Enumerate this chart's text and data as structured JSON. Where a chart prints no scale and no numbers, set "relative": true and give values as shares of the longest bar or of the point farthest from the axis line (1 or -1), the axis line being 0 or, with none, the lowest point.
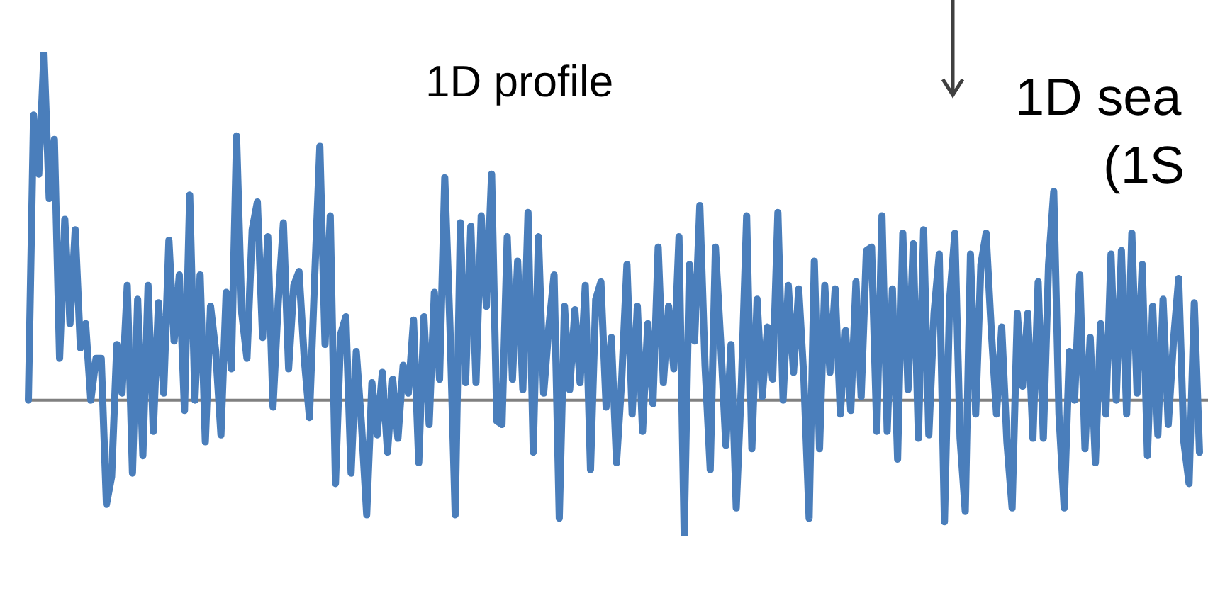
{
  "chart_data": {
    "type": "line",
    "relative": true,
    "color": "#4a7ebb",
    "legend": false,
    "annotations": [
      "1D profile",
      "1D sea",
      "(1S"
    ],
    "categories": [
      null,
      null,
      null,
      null,
      null,
      null,
      null,
      null,
      null,
      null,
      null,
      null,
      null,
      null,
      null,
      null,
      null,
      null,
      null,
      null,
      null,
      null,
      null,
      null,
      null,
      null,
      null,
      null,
      null,
      null,
      null,
      null,
      null,
      null,
      null,
      null,
      null,
      null,
      null,
      null,
      null,
      null,
      null,
      null,
      null,
      null,
      null,
      null,
      null,
      null,
      null,
      null,
      null,
      null,
      null,
      null,
      null,
      null,
      null,
      null,
      null,
      null,
      null,
      null,
      null,
      null,
      null,
      null,
      null,
      null,
      null,
      null,
      null,
      null,
      null,
      null,
      null,
      null,
      null,
      null,
      null,
      null,
      null,
      null,
      null,
      null,
      null,
      null,
      null,
      null,
      null,
      null,
      null,
      null,
      null,
      null,
      null,
      null,
      null,
      null,
      null,
      null,
      null,
      null,
      null,
      null,
      null,
      null,
      null,
      null,
      null,
      null,
      null,
      null,
      null,
      null,
      null,
      null,
      null,
      null,
      null,
      null,
      null,
      null,
      null,
      null,
      null,
      null,
      null,
      null,
      null,
      null,
      null,
      null,
      null,
      null,
      null,
      null,
      null,
      null,
      null,
      null,
      null,
      null,
      null,
      null,
      null,
      null,
      null,
      null,
      null,
      null,
      null,
      null,
      null,
      null,
      null,
      null,
      null,
      null,
      null,
      null,
      null,
      null,
      null,
      null,
      null,
      null,
      null,
      null,
      null,
      null,
      null,
      null,
      null,
      null,
      null,
      null,
      null,
      null,
      null,
      null,
      null,
      null,
      null,
      null,
      null,
      null,
      null,
      null,
      null,
      null,
      null,
      null,
      null,
      null,
      null,
      null,
      null,
      null,
      null,
      null,
      null,
      null,
      null,
      null,
      null,
      null,
      null,
      null,
      null,
      null,
      null,
      null,
      null,
      null,
      null,
      null,
      null,
      null,
      null,
      null,
      null,
      null,
      null,
      null
    ],
    "values": [
      0,
      0.82,
      0.65,
      1.0,
      0.58,
      0.75,
      0.12,
      0.52,
      0.22,
      0.49,
      0.15,
      0.22,
      0,
      0.12,
      0.12,
      -0.3,
      -0.22,
      0.16,
      0.02,
      0.33,
      -0.21,
      0.29,
      -0.16,
      0.33,
      -0.09,
      0.28,
      0.02,
      0.46,
      0.17,
      0.36,
      -0.03,
      0.59,
      0,
      0.36,
      -0.12,
      0.27,
      0.14,
      -0.1,
      0.31,
      0.09,
      0.76,
      0.25,
      0.12,
      0.49,
      0.57,
      0.18,
      0.47,
      -0.02,
      0.28,
      0.51,
      0.09,
      0.33,
      0.37,
      0.12,
      -0.05,
      0.35,
      0.73,
      0.16,
      0.53,
      -0.24,
      0.19,
      0.24,
      -0.21,
      0.14,
      -0.07,
      -0.33,
      0.05,
      -0.1,
      0.08,
      -0.15,
      0.06,
      -0.11,
      0.1,
      0.02,
      0.23,
      -0.18,
      0.24,
      -0.07,
      0.31,
      0.06,
      0.64,
      0.21,
      -0.33,
      0.51,
      0.05,
      0.5,
      0.05,
      0.53,
      0.27,
      0.65,
      -0.06,
      -0.07,
      0.47,
      0.06,
      0.4,
      0.03,
      0.54,
      -0.15,
      0.47,
      0.02,
      0.21,
      0.36,
      -0.34,
      0.27,
      0.03,
      0.26,
      0.05,
      0.33,
      -0.2,
      0.29,
      0.34,
      -0.02,
      0.18,
      -0.18,
      0.06,
      0.39,
      -0.04,
      0.27,
      -0.09,
      0.22,
      -0.01,
      0.44,
      0.05,
      0.27,
      0.09,
      0.47,
      -0.39,
      0.39,
      0.17,
      0.56,
      0.1,
      -0.2,
      0.44,
      0.17,
      -0.13,
      0.16,
      -0.31,
      0.05,
      0.53,
      -0.14,
      0.29,
      0.01,
      0.21,
      0.06,
      0.54,
      0,
      0.33,
      0.08,
      0.32,
      0.06,
      -0.34,
      0.4,
      -0.14,
      0.33,
      0.08,
      0.32,
      -0.04,
      0.2,
      -0.03,
      0.34,
      0.01,
      0.43,
      0.44,
      -0.09,
      0.53,
      -0.09,
      0.32,
      -0.17,
      0.48,
      0.03,
      0.45,
      -0.11,
      0.49,
      -0.1,
      0.25,
      0.42,
      -0.35,
      0.29,
      0.48,
      -0.11,
      -0.32,
      0.42,
      -0.04,
      0.39,
      0.48,
      0.2,
      -0.04,
      0.21,
      -0.12,
      -0.31,
      0.25,
      0.04,
      0.25,
      -0.11,
      0.34,
      -0.11,
      0.39,
      0.6,
      -0.04,
      -0.31,
      0.14,
      0,
      0.36,
      -0.14,
      0.18,
      -0.18,
      0.22,
      -0.04,
      0.42,
      0,
      0.43,
      -0.04,
      0.48,
      0.02,
      0.39,
      -0.16,
      0.27,
      -0.1,
      0.29,
      -0.07,
      0.17,
      0.35,
      -0.12,
      -0.24,
      0.28,
      -0.15
    ]
  }
}
